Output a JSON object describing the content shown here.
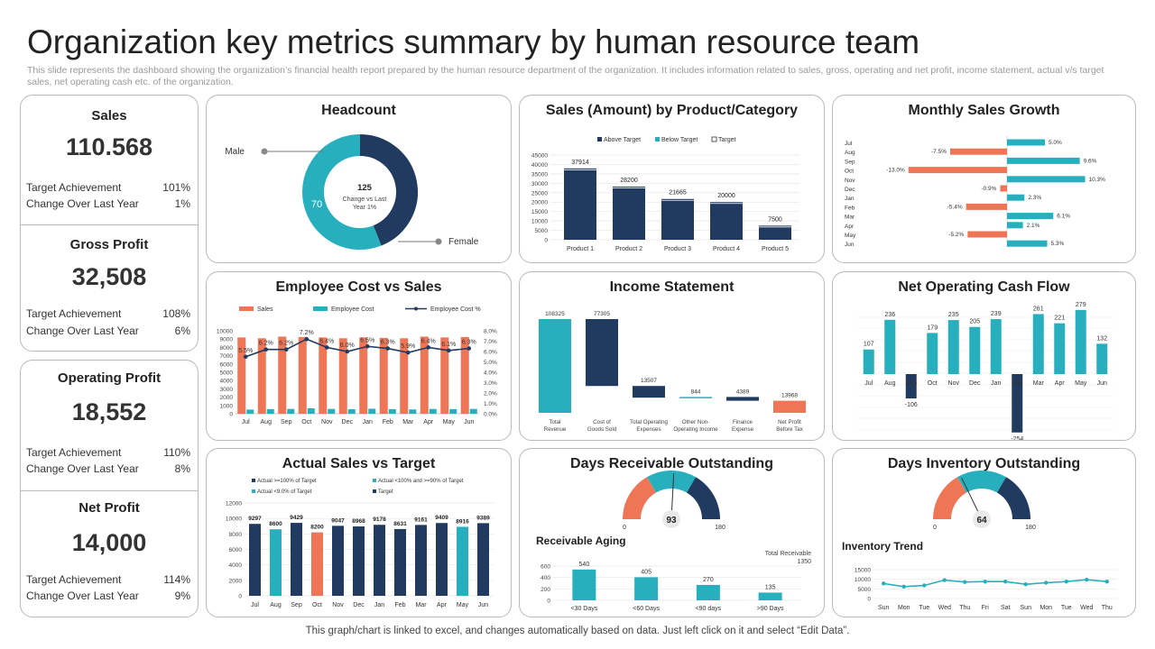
{
  "header": {
    "title": "Organization key metrics summary  by human resource team",
    "subtitle": "This slide represents the dashboard showing the organization’s financial health report prepared by the human resource department of the organization. It includes information related to sales, gross, operating and net profit, income statement, actual v/s target sales, net operating cash etc. of the organization.",
    "footer": "This graph/chart is linked to excel,  and changes automatically based on data. Just left click on it and select “Edit Data”."
  },
  "colors": {
    "navy": "#203a60",
    "teal": "#27afbd",
    "orange": "#ee7656"
  },
  "kpis": [
    {
      "title": "Sales",
      "value": "110.568",
      "target_label": "Target Achievement",
      "target": "101%",
      "change_label": "Change Over Last Year",
      "change": "1%"
    },
    {
      "title": "Gross Profit",
      "value": "32,508",
      "target_label": "Target Achievement",
      "target": "108%",
      "change_label": "Change Over Last Year",
      "change": "6%"
    },
    {
      "title": "Operating Profit",
      "value": "18,552",
      "target_label": "Target Achievement",
      "target": "110%",
      "change_label": "Change Over Last Year",
      "change": "8%"
    },
    {
      "title": "Net Profit",
      "value": "14,000",
      "target_label": "Target Achievement",
      "target": "114%",
      "change_label": "Change Over Last Year",
      "change": "9%"
    }
  ],
  "chart_data": [
    {
      "id": "headcount",
      "type": "pie",
      "title": "Headcount",
      "categories": [
        "Female",
        "Male"
      ],
      "values": [
        55,
        70
      ],
      "center_value": "125",
      "center_label_1": "Change vs Last",
      "center_label_2": "Year  1%",
      "inner_label": "70",
      "legend_male": "Male",
      "legend_female": "Female"
    },
    {
      "id": "sales_product",
      "type": "bar",
      "title": "Sales (Amount) by Product/Category",
      "categories": [
        "Product 1",
        "Product 2",
        "Product 3",
        "Product 4",
        "Product 5"
      ],
      "values": [
        37914,
        28200,
        21665,
        20000,
        7500
      ],
      "legend": [
        "Above Target",
        "Below Target",
        "Target"
      ],
      "ylim": [
        0,
        45000
      ],
      "yticks": [
        0,
        5000,
        10000,
        15000,
        20000,
        25000,
        30000,
        35000,
        40000,
        45000
      ]
    },
    {
      "id": "monthly_growth",
      "type": "bar",
      "title": "Monthly Sales Growth",
      "categories": [
        "Jul",
        "Aug",
        "Sep",
        "Oct",
        "Nov",
        "Dec",
        "Jan",
        "Feb",
        "Mar",
        "Apr",
        "May",
        "Jun"
      ],
      "values": [
        5.0,
        -7.5,
        9.6,
        -13.0,
        10.3,
        -0.9,
        2.3,
        -5.4,
        6.1,
        2.1,
        -5.2,
        5.3
      ],
      "labels": [
        "5.0%",
        "-7.5%",
        "9.6%",
        "-13.0%",
        "10.3%",
        "-0.9%",
        "2.3%",
        "-5.4%",
        "6.1%",
        "2.1%",
        "-5.2%",
        "5.3%"
      ]
    },
    {
      "id": "emp_cost",
      "type": "bar",
      "title": "Employee Cost vs Sales",
      "categories": [
        "Jul",
        "Aug",
        "Sep",
        "Oct",
        "Nov",
        "Dec",
        "Jan",
        "Feb",
        "Mar",
        "Apr",
        "May",
        "Jun"
      ],
      "series": [
        {
          "name": "Sales",
          "values": [
            9200,
            9100,
            9300,
            9250,
            9200,
            9100,
            9200,
            9150,
            9100,
            9300,
            9200,
            9250
          ]
        },
        {
          "name": "Employee Cost",
          "values": [
            500,
            560,
            580,
            650,
            580,
            540,
            600,
            560,
            520,
            580,
            560,
            580
          ]
        },
        {
          "name": "Employee Cost %",
          "values": [
            5.5,
            6.2,
            6.2,
            7.2,
            6.4,
            6.0,
            6.5,
            6.3,
            5.9,
            6.4,
            6.1,
            6.3
          ]
        }
      ],
      "line_labels": [
        "5.5%",
        "6.2%",
        "6.2%",
        "7.2%",
        "6.4%",
        "6.0%",
        "6.5%",
        "6.3%",
        "5.9%",
        "6.4%",
        "6.1%",
        "6.3%"
      ],
      "ylim": [
        0,
        10000
      ],
      "yticks": [
        0,
        1000,
        2000,
        3000,
        4000,
        5000,
        6000,
        7000,
        8000,
        9000,
        10000
      ],
      "y2lim": [
        0,
        8
      ],
      "y2ticks": [
        "0.0%",
        "1.0%",
        "2.0%",
        "3.0%",
        "4.0%",
        "5.0%",
        "6.0%",
        "7.0%",
        "8.0%"
      ]
    },
    {
      "id": "income",
      "type": "bar",
      "title": "Income Statement",
      "categories": [
        "Total Revenue",
        "Cost of Goods Sold",
        "Total Operating Expenses",
        "Other Non-Operating Income",
        "Finance Expense",
        "Net Profit Before Tax"
      ],
      "values": [
        108325,
        77305,
        13507,
        844,
        4389,
        13968
      ],
      "labels": [
        "108325",
        "77305",
        "13507",
        "844",
        "4389",
        "13968"
      ]
    },
    {
      "id": "cash_flow",
      "type": "bar",
      "title": "Net Operating Cash Flow",
      "categories": [
        "Jul",
        "Aug",
        "Sep",
        "Oct",
        "Nov",
        "Dec",
        "Jan",
        "Feb",
        "Mar",
        "Apr",
        "May",
        "Jun"
      ],
      "values": [
        107,
        236,
        -106,
        179,
        235,
        205,
        239,
        -254,
        261,
        221,
        279,
        132
      ]
    },
    {
      "id": "actual_target",
      "type": "bar",
      "title": "Actual  Sales vs Target",
      "categories": [
        "Jul",
        "Aug",
        "Sep",
        "Oct",
        "Nov",
        "Dec",
        "Jan",
        "Feb",
        "Mar",
        "Apr",
        "May",
        "Jun"
      ],
      "values": [
        9297,
        8600,
        9429,
        8200,
        9047,
        8968,
        9178,
        8631,
        9161,
        9409,
        8916,
        9389
      ],
      "groups": [
        "navy",
        "teal",
        "navy",
        "orange",
        "navy",
        "navy",
        "navy",
        "navy",
        "navy",
        "navy",
        "teal",
        "navy"
      ],
      "legend": [
        "Actual >=100% of Target",
        "Actual <100% and >=90% of Target",
        "Actual <9.0% of Target",
        "Target"
      ],
      "ylim": [
        0,
        12000
      ],
      "yticks": [
        0,
        2000,
        4000,
        6000,
        8000,
        10000,
        12000
      ]
    },
    {
      "id": "dro",
      "type": "pie",
      "title": "Days Receivable Outstanding",
      "gauge_value": 93,
      "gauge_value_label": "93",
      "gauge_min": "0",
      "gauge_max": "180",
      "sub_title": "Receivable Aging",
      "total_label": "Total Receivable",
      "total_value": "1350",
      "categories": [
        "<30 Days",
        "<60 Days",
        "<90 days",
        ">90 Days"
      ],
      "values": [
        540,
        405,
        270,
        135
      ],
      "ylim": [
        0,
        600
      ],
      "yticks": [
        0,
        200,
        400,
        600
      ]
    },
    {
      "id": "dio",
      "type": "line",
      "title": "Days Inventory Outstanding",
      "gauge_value": 64,
      "gauge_value_label": "64",
      "gauge_min": "0",
      "gauge_max": "180",
      "sub_title": "Inventory Trend",
      "categories": [
        "Sun",
        "Mon",
        "Tue",
        "Wed",
        "Thu",
        "Fri",
        "Sat",
        "Sun",
        "Mon",
        "Tue",
        "Wed",
        "Thu"
      ],
      "values": [
        7800,
        6200,
        6800,
        9600,
        8600,
        8800,
        8800,
        7400,
        8200,
        8800,
        9800,
        8800
      ],
      "ylim": [
        0,
        15000
      ],
      "yticks": [
        0,
        5000,
        10000,
        15000
      ]
    }
  ]
}
